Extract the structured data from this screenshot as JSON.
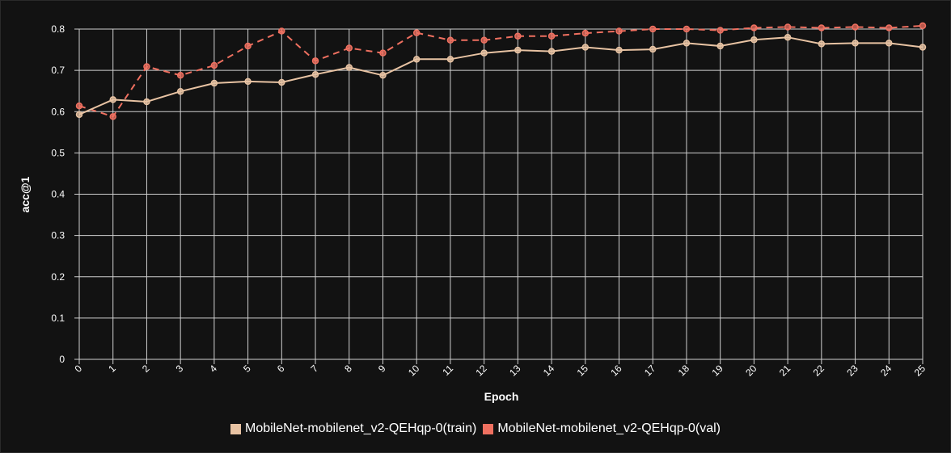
{
  "chart_data": {
    "type": "line",
    "xlabel": "Epoch",
    "ylabel": "acc@1",
    "x": [
      0,
      1,
      2,
      3,
      4,
      5,
      6,
      7,
      8,
      9,
      10,
      11,
      12,
      13,
      14,
      15,
      16,
      17,
      18,
      19,
      20,
      21,
      22,
      23,
      24,
      25
    ],
    "xlim": [
      0,
      25
    ],
    "ylim": [
      0,
      0.8
    ],
    "yticks": [
      "0",
      "0.1",
      "0.2",
      "0.3",
      "0.4",
      "0.5",
      "0.6",
      "0.7",
      "0.8"
    ],
    "ytick_values": [
      0,
      0.1,
      0.2,
      0.3,
      0.4,
      0.5,
      0.6,
      0.7,
      0.8
    ],
    "grid": true,
    "legend_position": "bottom-center",
    "series": [
      {
        "name": "MobileNet-mobilenet_v2-QEHqp-0(train)",
        "color": "#e8c3a3",
        "dash": "solid",
        "values": [
          0.593,
          0.629,
          0.624,
          0.649,
          0.669,
          0.673,
          0.671,
          0.69,
          0.707,
          0.688,
          0.727,
          0.727,
          0.742,
          0.749,
          0.746,
          0.756,
          0.749,
          0.751,
          0.766,
          0.759,
          0.774,
          0.78,
          0.764,
          0.766,
          0.766,
          0.756
        ]
      },
      {
        "name": "MobileNet-mobilenet_v2-QEHqp-0(val)",
        "color": "#ef7060",
        "dash": "dashed",
        "values": [
          0.614,
          0.588,
          0.709,
          0.688,
          0.712,
          0.759,
          0.795,
          0.723,
          0.754,
          0.742,
          0.791,
          0.773,
          0.773,
          0.783,
          0.783,
          0.79,
          0.795,
          0.8,
          0.8,
          0.797,
          0.803,
          0.805,
          0.803,
          0.805,
          0.803,
          0.808
        ]
      }
    ]
  }
}
